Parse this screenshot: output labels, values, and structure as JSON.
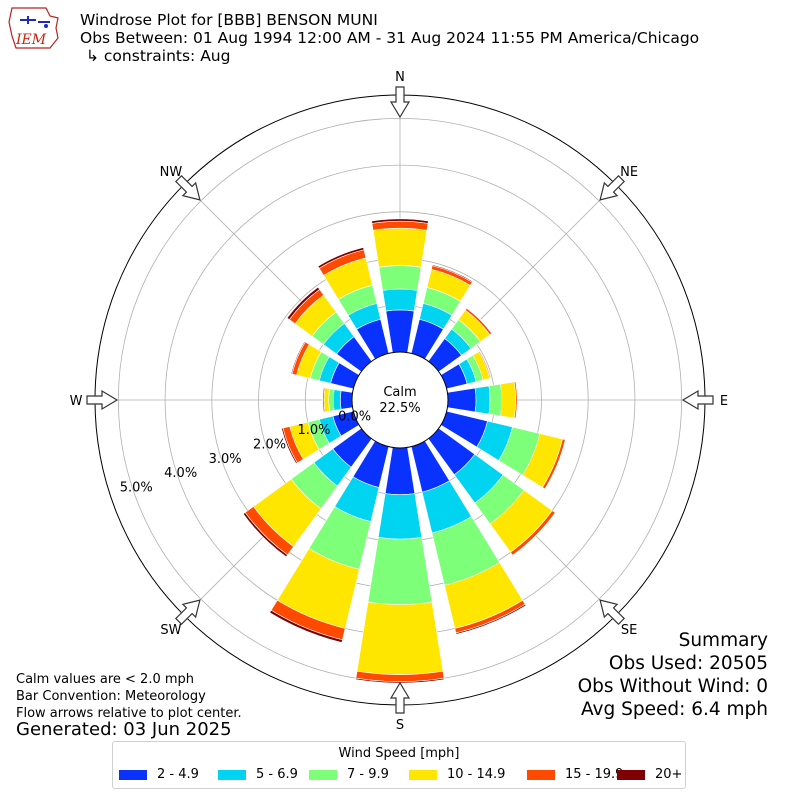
{
  "header": {
    "line1": "Windrose Plot for [BBB] BENSON MUNI",
    "line2": "Obs Between: 01 Aug 1994 12:00 AM - 31 Aug 2024 11:55 PM America/Chicago",
    "line3": "↳ constraints: Aug",
    "logo_text": "IEM"
  },
  "summary": {
    "heading": "Summary",
    "obs_used": "Obs Used: 20505",
    "obs_without_wind": "Obs Without Wind: 0",
    "avg_speed": "Avg Speed: 6.4 mph"
  },
  "notes": {
    "calm": "Calm values are < 2.0 mph",
    "convention": "Bar Convention: Meteorology",
    "arrows": "Flow arrows relative to plot center.",
    "generated": "Generated: 03 Jun 2025"
  },
  "center": {
    "label": "Calm",
    "value": "22.5%"
  },
  "chart_data": {
    "type": "windrose",
    "directions": [
      "N",
      "NNE",
      "NE",
      "ENE",
      "E",
      "ESE",
      "SE",
      "SSE",
      "S",
      "SSW",
      "SW",
      "WSW",
      "W",
      "WNW",
      "NW",
      "NNW"
    ],
    "compass_labels": [
      "N",
      "NE",
      "E",
      "SE",
      "S",
      "SW",
      "W",
      "NW"
    ],
    "radial_ticks": [
      "0.0%",
      "1.0%",
      "2.0%",
      "3.0%",
      "4.0%",
      "5.0%"
    ],
    "radial_max": 5.5,
    "speed_bins": [
      {
        "label": "2 - 4.9",
        "color": "#0a32ff"
      },
      {
        "label": "5 - 6.9",
        "color": "#00d4f0"
      },
      {
        "label": "7 - 9.9",
        "color": "#7dff7a"
      },
      {
        "label": "10 - 14.9",
        "color": "#ffe600"
      },
      {
        "label": "15 - 19.9",
        "color": "#ff4a00"
      },
      {
        "label": "20+",
        "color": "#7f0000"
      }
    ],
    "legend_title": "Wind Speed [mph]",
    "values": [
      [
        0.9,
        0.45,
        0.5,
        0.8,
        0.15,
        0.05
      ],
      [
        0.75,
        0.35,
        0.35,
        0.4,
        0.08,
        0.02
      ],
      [
        0.6,
        0.25,
        0.25,
        0.25,
        0.05,
        0.01
      ],
      [
        0.45,
        0.2,
        0.15,
        0.15,
        0.02,
        0.0
      ],
      [
        0.6,
        0.3,
        0.25,
        0.3,
        0.03,
        0.0
      ],
      [
        0.9,
        0.55,
        0.6,
        0.5,
        0.06,
        0.0
      ],
      [
        0.95,
        0.75,
        0.55,
        0.75,
        0.08,
        0.01
      ],
      [
        1.0,
        0.9,
        1.15,
        0.95,
        0.1,
        0.03
      ],
      [
        1.0,
        0.95,
        1.4,
        1.5,
        0.15,
        0.03
      ],
      [
        0.9,
        0.75,
        1.05,
        1.3,
        0.25,
        0.06
      ],
      [
        0.75,
        0.5,
        0.6,
        1.0,
        0.22,
        0.05
      ],
      [
        0.45,
        0.3,
        0.25,
        0.4,
        0.15,
        0.03
      ],
      [
        0.25,
        0.15,
        0.1,
        0.1,
        0.03,
        0.01
      ],
      [
        0.5,
        0.25,
        0.2,
        0.3,
        0.1,
        0.02
      ],
      [
        0.65,
        0.35,
        0.3,
        0.45,
        0.15,
        0.06
      ],
      [
        0.75,
        0.35,
        0.4,
        0.6,
        0.18,
        0.05
      ]
    ]
  }
}
